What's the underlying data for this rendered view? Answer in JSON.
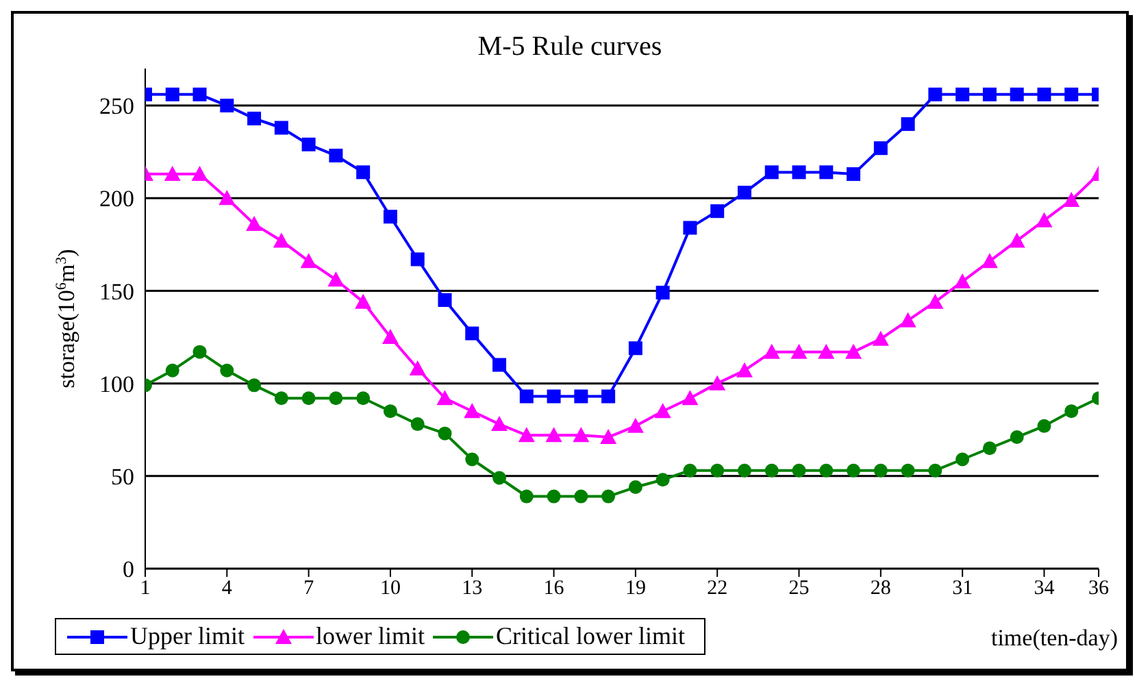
{
  "chart_data": {
    "type": "line",
    "title": "M-5  Rule curves",
    "xlabel": "time(ten-day)",
    "ylabel": "storage(10$^{6}$m$^{3}$)",
    "x": [
      1,
      2,
      3,
      4,
      5,
      6,
      7,
      8,
      9,
      10,
      11,
      12,
      13,
      14,
      15,
      16,
      17,
      18,
      19,
      20,
      21,
      22,
      23,
      24,
      25,
      26,
      27,
      28,
      29,
      30,
      31,
      32,
      33,
      34,
      35,
      36
    ],
    "series": [
      {
        "name": "Upper limit",
        "color": "#0000ff",
        "marker": "square",
        "values": [
          256,
          256,
          256,
          250,
          243,
          238,
          229,
          223,
          214,
          190,
          167,
          145,
          127,
          110,
          93,
          93,
          93,
          93,
          119,
          149,
          184,
          193,
          203,
          214,
          214,
          214,
          213,
          227,
          240,
          256,
          256,
          256,
          256,
          256,
          256,
          256
        ]
      },
      {
        "name": "lower limit",
        "color": "#ff00ff",
        "marker": "triangle",
        "values": [
          213,
          213,
          213,
          200,
          186,
          177,
          166,
          156,
          144,
          125,
          108,
          92,
          85,
          78,
          72,
          72,
          72,
          71,
          77,
          85,
          92,
          100,
          107,
          117,
          117,
          117,
          117,
          124,
          134,
          144,
          155,
          166,
          177,
          188,
          199,
          213
        ]
      },
      {
        "name": "Critical lower limit",
        "color": "#008000",
        "marker": "circle",
        "values": [
          99,
          107,
          117,
          107,
          99,
          92,
          92,
          92,
          92,
          85,
          78,
          73,
          59,
          49,
          39,
          39,
          39,
          39,
          44,
          48,
          53,
          53,
          53,
          53,
          53,
          53,
          53,
          53,
          53,
          53,
          59,
          65,
          71,
          77,
          85,
          92
        ]
      }
    ],
    "xlim": [
      1,
      36
    ],
    "xticks": [
      1,
      4,
      7,
      10,
      13,
      16,
      19,
      22,
      25,
      28,
      31,
      34,
      36
    ],
    "ylim": [
      0,
      270
    ],
    "yticks": [
      0,
      50,
      100,
      150,
      200,
      250
    ],
    "grid": "y",
    "legend": "bottom left"
  }
}
